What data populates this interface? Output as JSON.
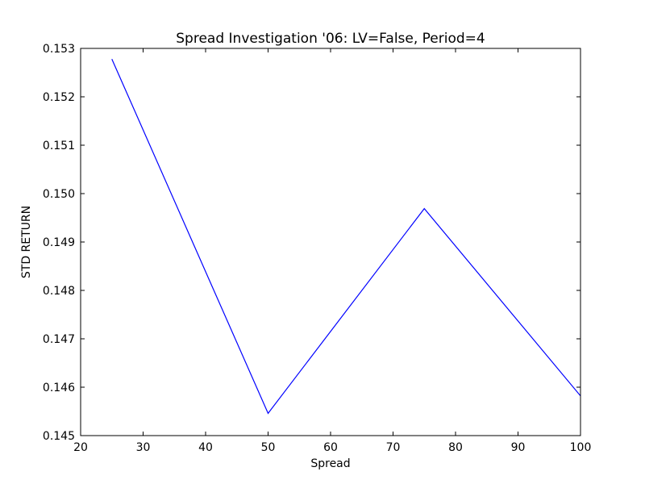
{
  "chart_data": {
    "type": "line",
    "title": "Spread Investigation '06: LV=False, Period=4",
    "xlabel": "Spread",
    "ylabel": "STD RETURN",
    "xlim": [
      20,
      100
    ],
    "ylim": [
      0.145,
      0.153
    ],
    "x_ticks": [
      20,
      30,
      40,
      50,
      60,
      70,
      80,
      90,
      100
    ],
    "x_tick_labels": [
      "20",
      "30",
      "40",
      "50",
      "60",
      "70",
      "80",
      "90",
      "100"
    ],
    "y_ticks": [
      0.145,
      0.146,
      0.147,
      0.148,
      0.149,
      0.15,
      0.151,
      0.152,
      0.153
    ],
    "y_tick_labels": [
      "0.145",
      "0.146",
      "0.147",
      "0.148",
      "0.149",
      "0.150",
      "0.151",
      "0.152",
      "0.153"
    ],
    "grid": false,
    "series": [
      {
        "color": "#0000ff",
        "x": [
          25,
          50,
          75,
          100
        ],
        "y": [
          0.15278,
          0.14546,
          0.14969,
          0.14582
        ]
      }
    ]
  }
}
